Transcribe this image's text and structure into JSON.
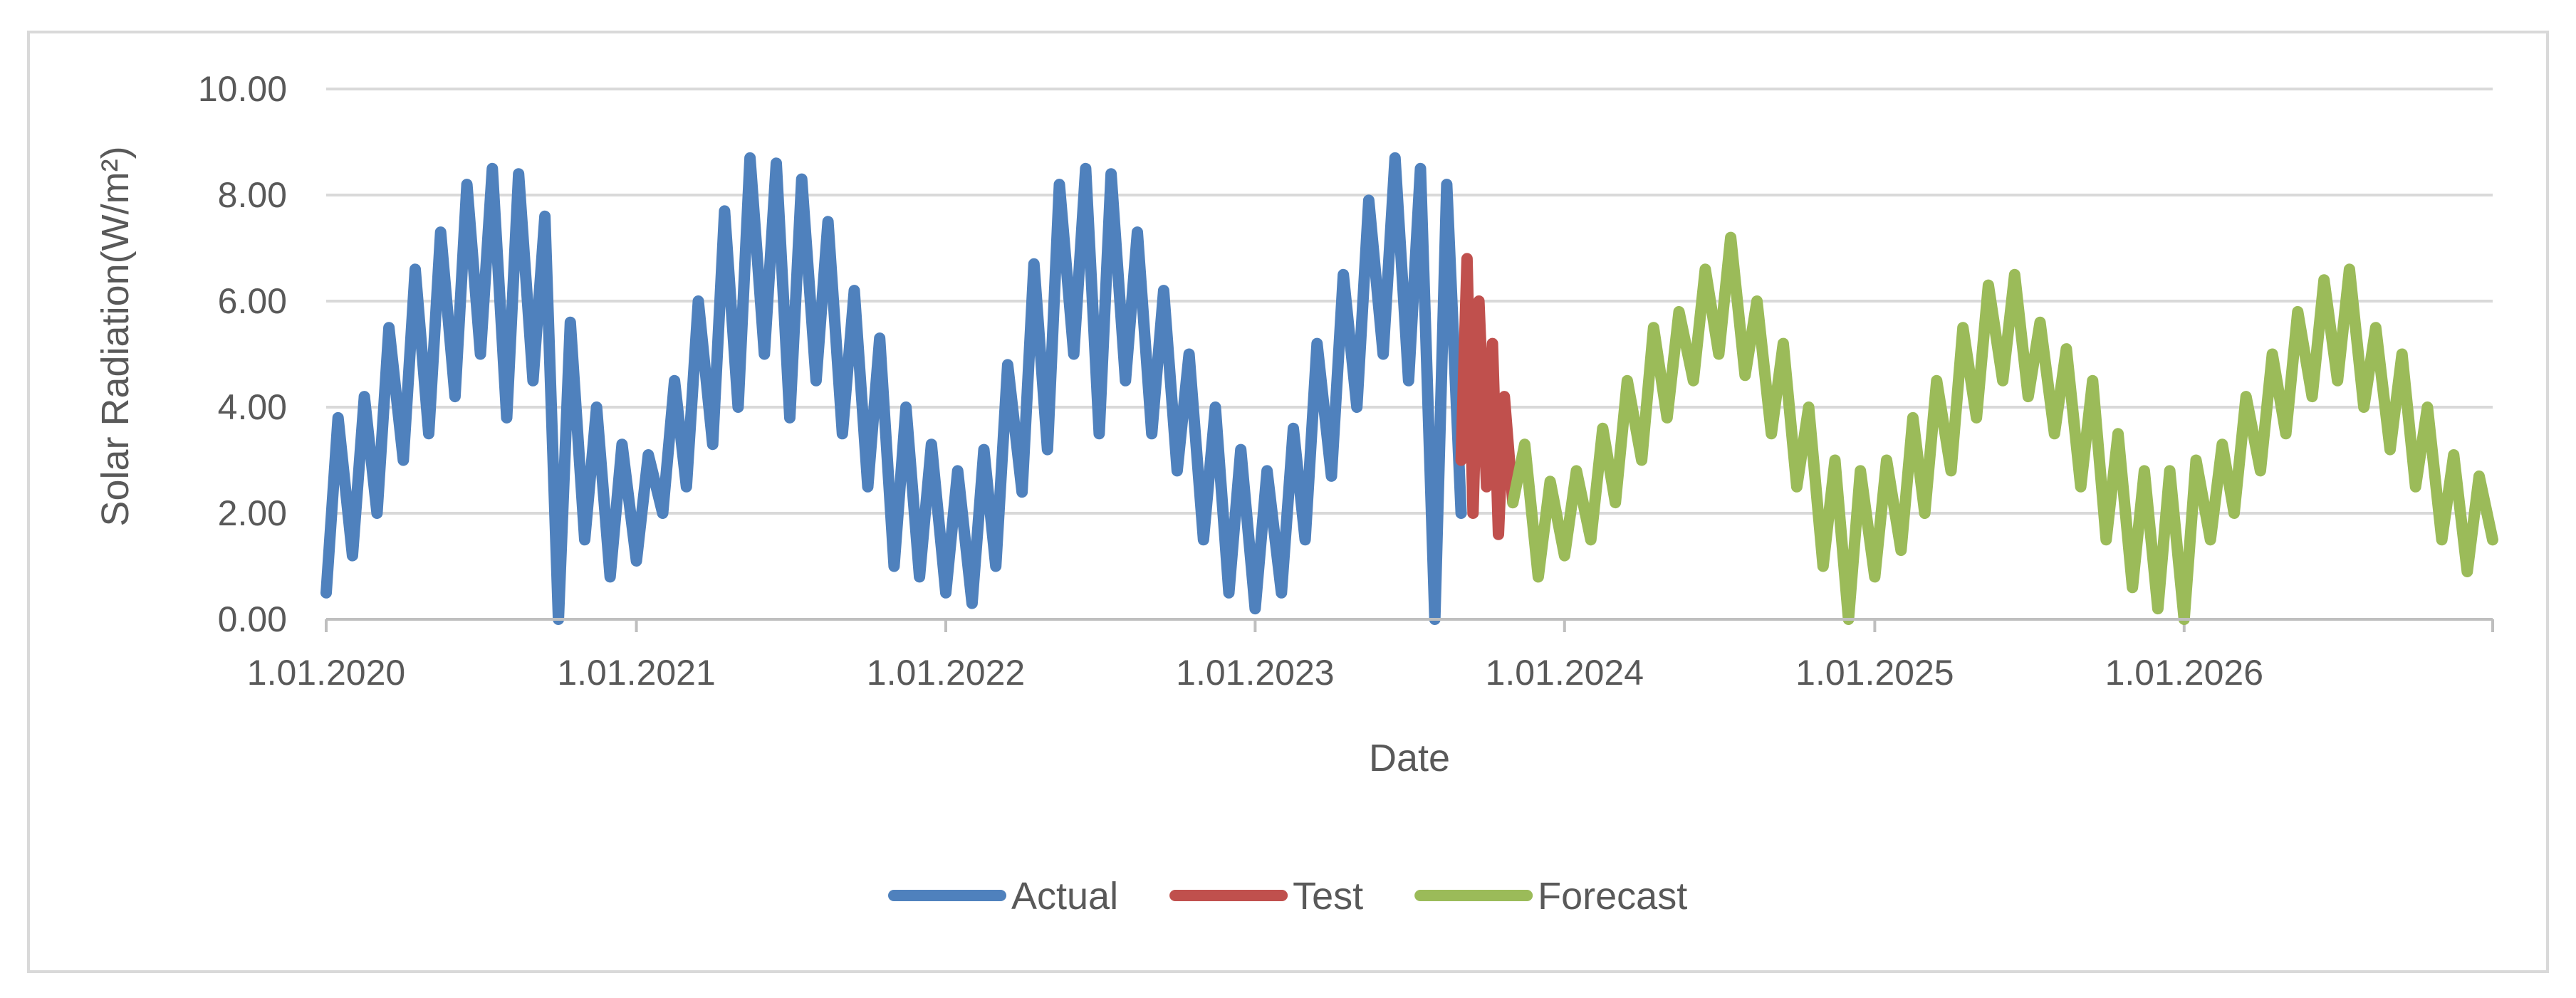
{
  "chart_data": {
    "type": "line",
    "xlabel": "Date",
    "ylabel": "Solar Radiation(W/m²)",
    "ylim": [
      0,
      10
    ],
    "yticks": [
      "0.00",
      "2.00",
      "4.00",
      "6.00",
      "8.00",
      "10.00"
    ],
    "xlim": [
      "2020-01-01",
      "2026-12-31"
    ],
    "xticks": [
      {
        "date": "2020-01-01",
        "label": "1.01.2020"
      },
      {
        "date": "2021-01-01",
        "label": "1.01.2021"
      },
      {
        "date": "2022-01-01",
        "label": "1.01.2022"
      },
      {
        "date": "2023-01-01",
        "label": "1.01.2023"
      },
      {
        "date": "2024-01-01",
        "label": "1.01.2024"
      },
      {
        "date": "2025-01-01",
        "label": "1.01.2025"
      },
      {
        "date": "2026-01-01",
        "label": "1.01.2026"
      }
    ],
    "grid": "horizontal",
    "legend_position": "bottom",
    "series": [
      {
        "name": "Actual",
        "color": "#4F81BD",
        "x": [
          "2020-01-01",
          "2020-01-15",
          "2020-02-01",
          "2020-02-15",
          "2020-03-01",
          "2020-03-15",
          "2020-04-01",
          "2020-04-15",
          "2020-05-01",
          "2020-05-15",
          "2020-06-01",
          "2020-06-15",
          "2020-07-01",
          "2020-07-15",
          "2020-08-01",
          "2020-08-15",
          "2020-09-01",
          "2020-09-15",
          "2020-10-01",
          "2020-10-15",
          "2020-11-01",
          "2020-11-15",
          "2020-12-01",
          "2020-12-15",
          "2021-01-01",
          "2021-01-15",
          "2021-02-01",
          "2021-02-15",
          "2021-03-01",
          "2021-03-15",
          "2021-04-01",
          "2021-04-15",
          "2021-05-01",
          "2021-05-15",
          "2021-06-01",
          "2021-06-15",
          "2021-07-01",
          "2021-07-15",
          "2021-08-01",
          "2021-08-15",
          "2021-09-01",
          "2021-09-15",
          "2021-10-01",
          "2021-10-15",
          "2021-11-01",
          "2021-11-15",
          "2021-12-01",
          "2021-12-15",
          "2022-01-01",
          "2022-01-15",
          "2022-02-01",
          "2022-02-15",
          "2022-03-01",
          "2022-03-15",
          "2022-04-01",
          "2022-04-15",
          "2022-05-01",
          "2022-05-15",
          "2022-06-01",
          "2022-06-15",
          "2022-07-01",
          "2022-07-15",
          "2022-08-01",
          "2022-08-15",
          "2022-09-01",
          "2022-09-15",
          "2022-10-01",
          "2022-10-15",
          "2022-11-01",
          "2022-11-15",
          "2022-12-01",
          "2022-12-15",
          "2023-01-01",
          "2023-01-15",
          "2023-02-01",
          "2023-02-15",
          "2023-03-01",
          "2023-03-15",
          "2023-04-01",
          "2023-04-15",
          "2023-05-01",
          "2023-05-15",
          "2023-06-01",
          "2023-06-15",
          "2023-07-01",
          "2023-07-15",
          "2023-08-01",
          "2023-08-15",
          "2023-09-01"
        ],
        "y": [
          0.5,
          3.8,
          1.2,
          4.2,
          2.0,
          5.5,
          3.0,
          6.6,
          3.5,
          7.3,
          4.2,
          8.2,
          5.0,
          8.5,
          3.8,
          8.4,
          4.5,
          7.6,
          0.0,
          5.6,
          1.5,
          4.0,
          0.8,
          3.3,
          1.1,
          3.1,
          2.0,
          4.5,
          2.5,
          6.0,
          3.3,
          7.7,
          4.0,
          8.7,
          5.0,
          8.6,
          3.8,
          8.3,
          4.5,
          7.5,
          3.5,
          6.2,
          2.5,
          5.3,
          1.0,
          4.0,
          0.8,
          3.3,
          0.5,
          2.8,
          0.3,
          3.2,
          1.0,
          4.8,
          2.4,
          6.7,
          3.2,
          8.2,
          5.0,
          8.5,
          3.5,
          8.4,
          4.5,
          7.3,
          3.5,
          6.2,
          2.8,
          5.0,
          1.5,
          4.0,
          0.5,
          3.2,
          0.2,
          2.8,
          0.5,
          3.6,
          1.5,
          5.2,
          2.7,
          6.5,
          4.0,
          7.9,
          5.0,
          8.7,
          4.5,
          8.5,
          0.0,
          8.2,
          2.0
        ]
      },
      {
        "name": "Test",
        "color": "#C0504D",
        "x": [
          "2023-09-01",
          "2023-09-08",
          "2023-09-15",
          "2023-09-22",
          "2023-10-01",
          "2023-10-08",
          "2023-10-15",
          "2023-10-22",
          "2023-11-01"
        ],
        "y": [
          3.0,
          6.8,
          2.0,
          6.0,
          2.5,
          5.2,
          1.6,
          4.2,
          2.2
        ]
      },
      {
        "name": "Forecast",
        "color": "#9BBB59",
        "x": [
          "2023-11-01",
          "2023-11-15",
          "2023-12-01",
          "2023-12-15",
          "2024-01-01",
          "2024-01-15",
          "2024-02-01",
          "2024-02-15",
          "2024-03-01",
          "2024-03-15",
          "2024-04-01",
          "2024-04-15",
          "2024-05-01",
          "2024-05-15",
          "2024-06-01",
          "2024-06-15",
          "2024-07-01",
          "2024-07-15",
          "2024-08-01",
          "2024-08-15",
          "2024-09-01",
          "2024-09-15",
          "2024-10-01",
          "2024-10-15",
          "2024-11-01",
          "2024-11-15",
          "2024-12-01",
          "2024-12-15",
          "2025-01-01",
          "2025-01-15",
          "2025-02-01",
          "2025-02-15",
          "2025-03-01",
          "2025-03-15",
          "2025-04-01",
          "2025-04-15",
          "2025-05-01",
          "2025-05-15",
          "2025-06-01",
          "2025-06-15",
          "2025-07-01",
          "2025-07-15",
          "2025-08-01",
          "2025-08-15",
          "2025-09-01",
          "2025-09-15",
          "2025-10-01",
          "2025-10-15",
          "2025-11-01",
          "2025-11-15",
          "2025-12-01",
          "2025-12-15",
          "2026-01-01",
          "2026-01-15",
          "2026-02-01",
          "2026-02-15",
          "2026-03-01",
          "2026-03-15",
          "2026-04-01",
          "2026-04-15",
          "2026-05-01",
          "2026-05-15",
          "2026-06-01",
          "2026-06-15",
          "2026-07-01",
          "2026-07-15",
          "2026-08-01",
          "2026-08-15",
          "2026-09-01",
          "2026-09-15",
          "2026-10-01",
          "2026-10-15",
          "2026-11-01",
          "2026-11-15",
          "2026-12-01",
          "2026-12-15",
          "2026-12-31"
        ],
        "y": [
          2.2,
          3.3,
          0.8,
          2.6,
          1.2,
          2.8,
          1.5,
          3.6,
          2.2,
          4.5,
          3.0,
          5.5,
          3.8,
          5.8,
          4.5,
          6.6,
          5.0,
          7.2,
          4.6,
          6.0,
          3.5,
          5.2,
          2.5,
          4.0,
          1.0,
          3.0,
          0.0,
          2.8,
          0.8,
          3.0,
          1.3,
          3.8,
          2.0,
          4.5,
          2.8,
          5.5,
          3.8,
          6.3,
          4.5,
          6.5,
          4.2,
          5.6,
          3.5,
          5.1,
          2.5,
          4.5,
          1.5,
          3.5,
          0.6,
          2.8,
          0.2,
          2.8,
          0.0,
          3.0,
          1.5,
          3.3,
          2.0,
          4.2,
          2.8,
          5.0,
          3.5,
          5.8,
          4.2,
          6.4,
          4.5,
          6.6,
          4.0,
          5.5,
          3.2,
          5.0,
          2.5,
          4.0,
          1.5,
          3.1,
          0.9,
          2.7,
          1.5
        ]
      }
    ]
  }
}
